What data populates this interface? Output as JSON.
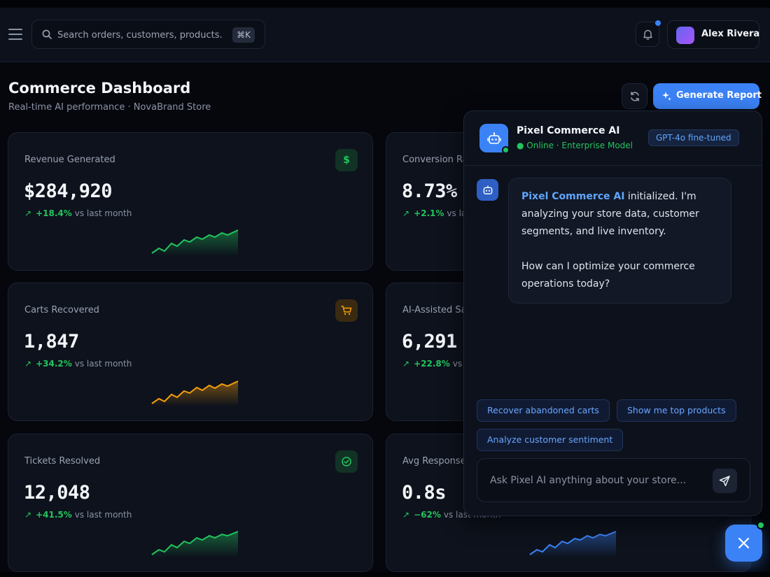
{
  "topbar": {
    "search_placeholder": "Search orders, customers, products...",
    "search_shortcut": "⌘K",
    "user_name": "Alex Rivera"
  },
  "page": {
    "title": "Commerce Dashboard",
    "subtitle": "Real-time AI performance · NovaBrand Store",
    "generate_label": "Generate Report"
  },
  "cards": [
    {
      "label": "Revenue Generated",
      "value": "$284,920",
      "delta": "+18.4%",
      "vs": "vs last month",
      "icon": "dollar-icon",
      "icon_glyph": "$",
      "accent": "#22c55e"
    },
    {
      "label": "Conversion Ra",
      "value": "8.73%",
      "delta": "+2.1%",
      "vs": "vs la",
      "accent": "#22c55e"
    },
    {
      "label": "Carts Recovered",
      "value": "1,847",
      "delta": "+34.2%",
      "vs": "vs last month",
      "icon": "cart-icon",
      "accent": "#f59e0b"
    },
    {
      "label": "AI-Assisted Sa",
      "value": "6,291",
      "delta": "+22.8%",
      "vs": "vs",
      "accent": "#22c55e"
    },
    {
      "label": "Tickets Resolved",
      "value": "12,048",
      "delta": "+41.5%",
      "vs": "vs last month",
      "icon": "check-circle-icon",
      "accent": "#22c55e"
    },
    {
      "label": "Avg Response",
      "value": "0.8s",
      "delta": "−62%",
      "vs": "vs last month",
      "accent": "#3b82f6"
    }
  ],
  "chat": {
    "bot_name": "Pixel Commerce AI",
    "status": "● Online · Enterprise Model",
    "model_badge": "GPT-4o fine-tuned",
    "message_highlight": "Pixel Commerce AI",
    "message_line1_rest": " initialized. I'm analyzing your store data, customer segments, and live inventory.",
    "message_line2": "How can I optimize your commerce operations today?",
    "suggestions": [
      "Recover abandoned carts",
      "Show me top products",
      "Analyze customer sentiment"
    ],
    "input_placeholder": "Ask Pixel AI anything about your store..."
  },
  "colors": {
    "accent": "#3b82f6",
    "positive": "#22c55e",
    "warning": "#f59e0b",
    "background": "#05070d",
    "card": "#0d121c"
  }
}
